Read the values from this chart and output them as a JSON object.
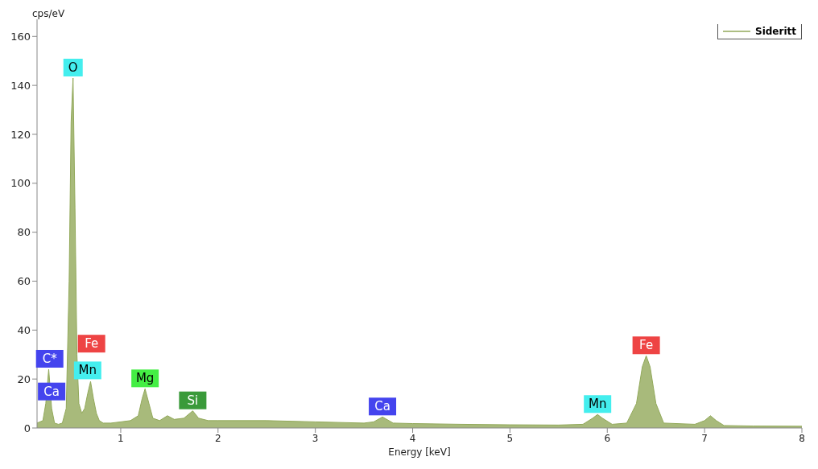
{
  "chart_data": {
    "type": "area",
    "xlabel": "Energy [keV]",
    "ylabel": "cps/eV",
    "xlim": [
      0.14,
      8
    ],
    "ylim": [
      0,
      167
    ],
    "xticks": [
      1,
      2,
      3,
      4,
      5,
      6,
      7,
      8
    ],
    "yticks": [
      0,
      20,
      40,
      60,
      80,
      100,
      120,
      140,
      160
    ],
    "grid": false,
    "legend": "top right",
    "series": [
      {
        "name": "Sideritt",
        "color": "#92a95a",
        "x": [
          0.14,
          0.2,
          0.23,
          0.26,
          0.29,
          0.32,
          0.36,
          0.4,
          0.44,
          0.47,
          0.49,
          0.51,
          0.53,
          0.55,
          0.57,
          0.6,
          0.63,
          0.66,
          0.69,
          0.72,
          0.75,
          0.78,
          0.82,
          0.9,
          1.0,
          1.1,
          1.18,
          1.22,
          1.25,
          1.29,
          1.33,
          1.4,
          1.48,
          1.55,
          1.65,
          1.74,
          1.8,
          1.9,
          2.0,
          2.5,
          3.0,
          3.5,
          3.6,
          3.69,
          3.8,
          4.0,
          4.5,
          5.0,
          5.5,
          5.75,
          5.85,
          5.9,
          5.95,
          6.05,
          6.2,
          6.3,
          6.36,
          6.4,
          6.44,
          6.5,
          6.58,
          6.9,
          7.0,
          7.06,
          7.12,
          7.2,
          7.5,
          8.0
        ],
        "values": [
          2,
          3,
          10,
          24,
          8,
          2,
          1.5,
          2,
          8,
          60,
          125,
          143,
          90,
          30,
          10,
          6,
          8,
          14,
          19,
          12,
          6,
          3,
          2,
          2,
          2.5,
          3,
          5,
          12,
          16,
          10,
          4,
          3,
          5,
          3.5,
          4,
          7,
          4,
          3,
          3,
          3,
          2.5,
          2,
          2.5,
          4.5,
          2,
          1.8,
          1.5,
          1.3,
          1.2,
          1.5,
          4,
          5.5,
          4,
          1.5,
          2,
          10,
          25,
          29.5,
          25,
          10,
          2,
          1.5,
          3,
          5,
          3,
          1,
          0.8,
          0.7
        ]
      }
    ],
    "annotations": [
      {
        "text": "C*",
        "x": 0.27,
        "y": 24
      },
      {
        "text": "Ca",
        "x": 0.29,
        "y": 8
      },
      {
        "text": "O",
        "x": 0.51,
        "y": 143
      },
      {
        "text": "Mn",
        "x": 0.66,
        "y": 14
      },
      {
        "text": "Fe",
        "x": 0.7,
        "y": 19
      },
      {
        "text": "Mg",
        "x": 1.25,
        "y": 16
      },
      {
        "text": "Si",
        "x": 1.74,
        "y": 7
      },
      {
        "text": "Ca",
        "x": 3.69,
        "y": 4.5
      },
      {
        "text": "Mn",
        "x": 5.9,
        "y": 5.5
      },
      {
        "text": "Fe",
        "x": 6.4,
        "y": 29.5
      }
    ]
  }
}
